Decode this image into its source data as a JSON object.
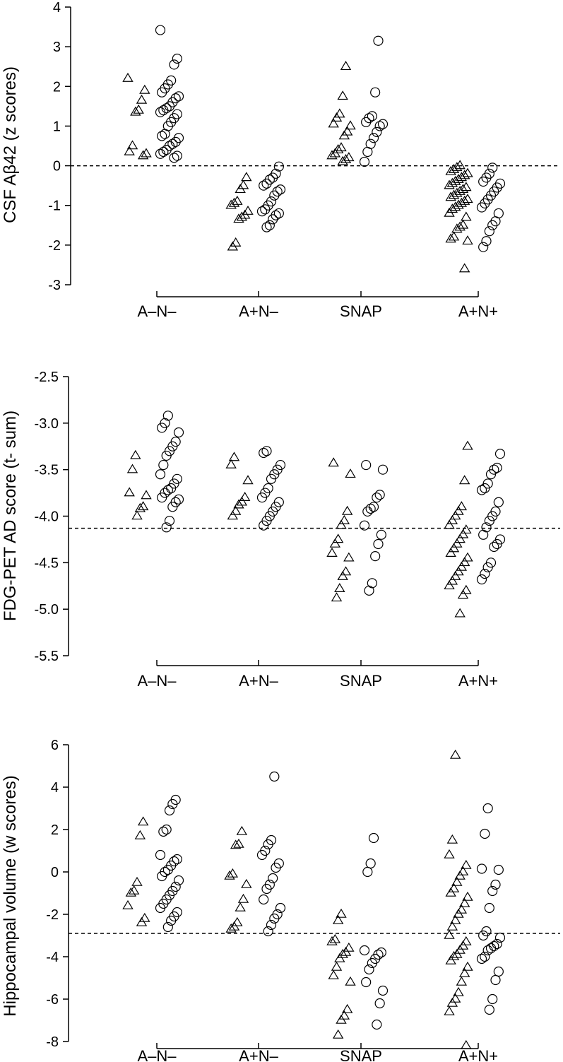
{
  "charts": [
    {
      "ylabel": "CSF Aβ42 (z scores)",
      "yticks": [
        "4",
        "3",
        "2",
        "1",
        "0",
        "-1",
        "-2",
        "-3"
      ],
      "categories": [
        "A–N–",
        "A+N–",
        "SNAP",
        "A+N+"
      ]
    },
    {
      "ylabel": "FDG-PET AD score (t- sum)",
      "yticks": [
        "-2.5",
        "-3.0",
        "-3.5",
        "-4.0",
        "-4.5",
        "-5.0",
        "-5.5"
      ],
      "categories": [
        "A–N–",
        "A+N–",
        "SNAP",
        "A+N+"
      ]
    },
    {
      "ylabel": "Hippocampal volume (w scores)",
      "yticks": [
        "6",
        "4",
        "2",
        "0",
        "-2",
        "-4",
        "-6",
        "-8"
      ],
      "categories": [
        "A–N–",
        "A+N–",
        "SNAP",
        "A+N+"
      ]
    }
  ],
  "chart_data": [
    {
      "type": "scatter",
      "ylabel": "CSF Aβ42 (z scores)",
      "ylim": [
        -3,
        4
      ],
      "categories": [
        "A–N–",
        "A+N–",
        "SNAP",
        "A+N+"
      ],
      "reference_line_y": 0,
      "series": [
        {
          "marker": "triangle",
          "values_by_category": [
            [
              2.2,
              1.9,
              1.65,
              1.4,
              1.35,
              0.5,
              0.35,
              0.3,
              0.25
            ],
            [
              -0.3,
              -0.5,
              -0.6,
              -0.9,
              -0.95,
              -1.0,
              -1.15,
              -1.25,
              -1.3,
              -1.35,
              -1.95,
              -2.05
            ],
            [
              2.5,
              1.75,
              1.3,
              1.2,
              1.05,
              1.0,
              0.85,
              0.75,
              0.45,
              0.4,
              0.3,
              0.25,
              0.2,
              0.15,
              0.1
            ],
            [
              0.0,
              -0.05,
              -0.1,
              -0.15,
              -0.2,
              -0.25,
              -0.3,
              -0.35,
              -0.4,
              -0.45,
              -0.5,
              -0.55,
              -0.6,
              -0.65,
              -0.7,
              -0.75,
              -0.8,
              -0.85,
              -0.9,
              -0.95,
              -1.0,
              -1.05,
              -1.1,
              -1.2,
              -1.3,
              -1.5,
              -1.55,
              -1.6,
              -1.8,
              -1.85,
              -1.9,
              -2.6
            ]
          ]
        },
        {
          "marker": "circle",
          "values_by_category": [
            [
              3.42,
              2.7,
              2.55,
              2.15,
              2.05,
              1.95,
              1.85,
              1.75,
              1.7,
              1.6,
              1.5,
              1.45,
              1.4,
              1.35,
              1.3,
              1.2,
              1.1,
              1.0,
              0.8,
              0.75,
              0.7,
              0.6,
              0.55,
              0.5,
              0.4,
              0.35,
              0.3,
              0.25,
              0.2
            ],
            [
              -0.02,
              -0.2,
              -0.3,
              -0.35,
              -0.45,
              -0.5,
              -0.6,
              -0.65,
              -0.75,
              -0.9,
              -1.0,
              -1.1,
              -1.15,
              -1.2,
              -1.25,
              -1.35,
              -1.5,
              -1.55
            ],
            [
              3.15,
              1.85,
              1.25,
              1.2,
              1.1,
              1.05,
              1.0,
              0.85,
              0.7,
              0.55,
              0.35,
              0.1
            ],
            [
              -0.05,
              -0.2,
              -0.3,
              -0.4,
              -0.45,
              -0.55,
              -0.65,
              -0.75,
              -0.85,
              -0.95,
              -1.05,
              -1.2,
              -1.4,
              -1.5,
              -1.65,
              -1.9,
              -2.05
            ]
          ]
        }
      ]
    },
    {
      "type": "scatter",
      "ylabel": "FDG-PET AD score (t- sum)",
      "ylim": [
        -5.5,
        -2.5
      ],
      "categories": [
        "A–N–",
        "A+N–",
        "SNAP",
        "A+N+"
      ],
      "reference_line_y": -4.13,
      "series": [
        {
          "marker": "triangle",
          "values_by_category": [
            [
              -3.35,
              -3.5,
              -3.75,
              -3.78,
              -3.9,
              -3.92,
              -4.0
            ],
            [
              -3.37,
              -3.45,
              -3.62,
              -3.8,
              -3.85,
              -3.88,
              -3.95,
              -4.0
            ],
            [
              -3.43,
              -3.55,
              -3.95,
              -4.05,
              -4.1,
              -4.25,
              -4.3,
              -4.4,
              -4.45,
              -4.6,
              -4.65,
              -4.78,
              -4.88
            ],
            [
              -3.25,
              -3.62,
              -3.9,
              -3.95,
              -4.0,
              -4.05,
              -4.1,
              -4.15,
              -4.2,
              -4.25,
              -4.3,
              -4.35,
              -4.4,
              -4.45,
              -4.5,
              -4.55,
              -4.6,
              -4.65,
              -4.7,
              -4.75,
              -4.8,
              -4.85,
              -5.05
            ]
          ]
        },
        {
          "marker": "circle",
          "values_by_category": [
            [
              -2.92,
              -3.0,
              -3.05,
              -3.1,
              -3.2,
              -3.25,
              -3.3,
              -3.35,
              -3.45,
              -3.55,
              -3.6,
              -3.65,
              -3.7,
              -3.72,
              -3.75,
              -3.8,
              -3.82,
              -3.85,
              -3.9,
              -4.05,
              -4.12
            ],
            [
              -3.3,
              -3.32,
              -3.45,
              -3.5,
              -3.55,
              -3.6,
              -3.7,
              -3.75,
              -3.8,
              -3.85,
              -3.9,
              -3.95,
              -4.0,
              -4.05,
              -4.1
            ],
            [
              -3.45,
              -3.5,
              -3.77,
              -3.8,
              -3.9,
              -3.92,
              -3.95,
              -4.1,
              -4.2,
              -4.3,
              -4.43,
              -4.72,
              -4.8
            ],
            [
              -3.33,
              -3.48,
              -3.5,
              -3.55,
              -3.65,
              -3.7,
              -3.72,
              -3.85,
              -3.95,
              -4.0,
              -4.05,
              -4.12,
              -4.2,
              -4.25,
              -4.3,
              -4.33,
              -4.5,
              -4.55,
              -4.62,
              -4.68
            ]
          ]
        }
      ]
    },
    {
      "type": "scatter",
      "ylabel": "Hippocampal volume (w scores)",
      "ylim": [
        -8,
        6
      ],
      "categories": [
        "A–N–",
        "A+N–",
        "SNAP",
        "A+N+"
      ],
      "reference_line_y": -2.9,
      "series": [
        {
          "marker": "triangle",
          "values_by_category": [
            [
              2.35,
              1.7,
              -0.5,
              -0.9,
              -1.0,
              -1.6,
              -2.2,
              -2.4
            ],
            [
              1.9,
              1.3,
              1.25,
              -0.1,
              -0.2,
              -0.6,
              -1.3,
              -1.7,
              -2.4,
              -2.6,
              -2.7
            ],
            [
              -2.0,
              -2.3,
              -3.2,
              -3.3,
              -3.6,
              -3.8,
              -3.9,
              -4.1,
              -4.5,
              -4.9,
              -5.2,
              -6.5,
              -6.8,
              -7.0,
              -7.7
            ],
            [
              5.5,
              1.5,
              0.8,
              0.3,
              0.0,
              -0.2,
              -0.5,
              -0.8,
              -1.0,
              -1.2,
              -1.5,
              -1.8,
              -2.0,
              -2.3,
              -2.6,
              -3.0,
              -3.3,
              -3.5,
              -3.7,
              -3.9,
              -4.0,
              -4.2,
              -4.5,
              -4.8,
              -5.2,
              -5.7,
              -6.0,
              -6.2,
              -6.6,
              -8.2
            ]
          ]
        },
        {
          "marker": "circle",
          "values_by_category": [
            [
              3.4,
              3.2,
              2.9,
              2.0,
              1.9,
              0.8,
              0.6,
              0.5,
              0.3,
              0.1,
              0.0,
              -0.2,
              -0.4,
              -0.7,
              -0.9,
              -1.1,
              -1.3,
              -1.5,
              -1.7,
              -1.9,
              -2.1,
              -2.3,
              -2.6
            ],
            [
              4.5,
              1.5,
              1.3,
              1.0,
              0.8,
              0.4,
              0.2,
              -0.3,
              -0.6,
              -0.8,
              -1.3,
              -1.7,
              -2.0,
              -2.2,
              -2.5,
              -2.8
            ],
            [
              1.6,
              0.4,
              0.0,
              -3.7,
              -3.8,
              -3.9,
              -4.1,
              -4.3,
              -4.6,
              -5.2,
              -5.6,
              -6.2,
              -7.2
            ],
            [
              3.0,
              1.8,
              0.15,
              0.1,
              -0.6,
              -0.9,
              -1.7,
              -2.8,
              -3.0,
              -3.1,
              -3.4,
              -3.5,
              -3.6,
              -3.7,
              -4.0,
              -4.1,
              -4.7,
              -5.1,
              -6.0,
              -6.5
            ]
          ]
        }
      ]
    }
  ]
}
